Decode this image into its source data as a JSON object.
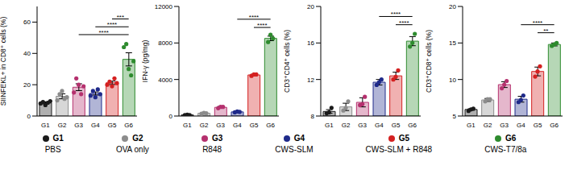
{
  "chart_data": [
    {
      "type": "bar",
      "y_label": "SIINFEKL+ in CD8⁺ cells (%)",
      "categories": [
        "G1",
        "G2",
        "G3",
        "G4",
        "G5",
        "G6"
      ],
      "values": [
        8.4,
        12.6,
        18.4,
        14.4,
        21.2,
        36.2
      ],
      "errors": [
        0.7,
        1.6,
        2.2,
        1.0,
        1.1,
        4.2
      ],
      "points": [
        [
          8,
          9,
          7,
          8.5,
          9.5
        ],
        [
          10,
          14,
          16,
          11,
          12
        ],
        [
          15,
          24,
          20,
          14,
          19
        ],
        [
          13,
          16,
          12,
          17,
          14
        ],
        [
          20,
          22,
          19,
          24,
          21
        ],
        [
          44,
          46,
          30,
          26,
          35
        ]
      ],
      "colors": [
        "#1a1a1a",
        "#8c8c8c",
        "#b5306e",
        "#1f2a8a",
        "#d42020",
        "#2e8b2e"
      ],
      "ylim": [
        0,
        70
      ],
      "yticks": [
        0,
        20,
        40,
        60
      ],
      "comparisons": [
        {
          "from": "G5",
          "to": "G6",
          "y": 62,
          "label": "***"
        },
        {
          "from": "G4",
          "to": "G6",
          "y": 57,
          "label": "****"
        },
        {
          "from": "G3",
          "to": "G6",
          "y": 52,
          "label": "****"
        }
      ]
    },
    {
      "type": "bar",
      "y_label": "IFN-γ (pg/mg)",
      "categories": [
        "G1",
        "G2",
        "G3",
        "G4",
        "G5",
        "G6"
      ],
      "values": [
        120,
        300,
        950,
        450,
        4500,
        8500
      ],
      "errors": [
        30,
        60,
        100,
        80,
        70,
        250
      ],
      "points": [
        [
          100,
          150,
          110
        ],
        [
          250,
          350,
          300
        ],
        [
          850,
          1000,
          1000
        ],
        [
          400,
          500,
          450
        ],
        [
          4400,
          4550,
          4550
        ],
        [
          8100,
          8900,
          8500
        ]
      ],
      "colors": [
        "#1a1a1a",
        "#8c8c8c",
        "#b5306e",
        "#1f2a8a",
        "#d42020",
        "#2e8b2e"
      ],
      "ylim": [
        0,
        12000
      ],
      "yticks": [
        0,
        4000,
        8000,
        12000
      ],
      "comparisons": [
        {
          "from": "G5",
          "to": "G6",
          "y": 9700,
          "label": "****"
        },
        {
          "from": "G4",
          "to": "G6",
          "y": 10600,
          "label": "****"
        }
      ]
    },
    {
      "type": "bar",
      "y_label": "CD3⁺CD4⁺ cells (%)",
      "categories": [
        "G1",
        "G2",
        "G3",
        "G4",
        "G5",
        "G6"
      ],
      "values": [
        8.5,
        9.0,
        9.5,
        11.7,
        12.4,
        16.2
      ],
      "errors": [
        0.2,
        0.4,
        0.5,
        0.3,
        0.4,
        0.5
      ],
      "points": [
        [
          8.3,
          8.4,
          8.9
        ],
        [
          8.6,
          8.9,
          9.6
        ],
        [
          9.2,
          9.3,
          10.1
        ],
        [
          11.4,
          11.7,
          12.0
        ],
        [
          12.0,
          12.3,
          13.0
        ],
        [
          15.6,
          16.0,
          17.0
        ]
      ],
      "colors": [
        "#1a1a1a",
        "#8c8c8c",
        "#b5306e",
        "#1f2a8a",
        "#d42020",
        "#2e8b2e"
      ],
      "ylim": [
        8,
        20
      ],
      "yticks": [
        8,
        12,
        16,
        20
      ],
      "comparisons": [
        {
          "from": "G5",
          "to": "G6",
          "y": 18.0,
          "label": "****"
        },
        {
          "from": "G4",
          "to": "G6",
          "y": 18.9,
          "label": "****"
        }
      ]
    },
    {
      "type": "bar",
      "y_label": "CD3⁺CD8⁺ cells (%)",
      "categories": [
        "G1",
        "G2",
        "G3",
        "G4",
        "G5",
        "G6"
      ],
      "values": [
        5.9,
        7.2,
        9.3,
        7.3,
        11.1,
        14.8
      ],
      "errors": [
        0.1,
        0.2,
        0.4,
        0.4,
        0.6,
        0.2
      ],
      "points": [
        [
          5.7,
          5.9,
          6.0
        ],
        [
          7.0,
          7.3,
          7.3
        ],
        [
          8.8,
          9.3,
          9.8
        ],
        [
          6.9,
          7.2,
          7.8
        ],
        [
          10.4,
          11.1,
          11.8
        ],
        [
          14.6,
          14.8,
          15.0
        ]
      ],
      "colors": [
        "#1a1a1a",
        "#8c8c8c",
        "#b5306e",
        "#1f2a8a",
        "#d42020",
        "#2e8b2e"
      ],
      "ylim": [
        5,
        20
      ],
      "yticks": [
        5,
        10,
        15,
        20
      ],
      "comparisons": [
        {
          "from": "G5",
          "to": "G6",
          "y": 16.4,
          "label": "**"
        },
        {
          "from": "G4",
          "to": "G6",
          "y": 17.5,
          "label": "****"
        }
      ]
    }
  ],
  "group_legend": {
    "labels": [
      "G1",
      "G2",
      "G3",
      "G4",
      "G5",
      "G6"
    ],
    "descriptions": [
      "PBS",
      "OVA only",
      "R848",
      "CWS-SLM",
      "CWS-SLM + R848",
      "CWS-T7/8a"
    ],
    "colors": [
      "#1a1a1a",
      "#8c8c8c",
      "#b5306e",
      "#1f2a8a",
      "#d42020",
      "#2e8b2e"
    ]
  }
}
